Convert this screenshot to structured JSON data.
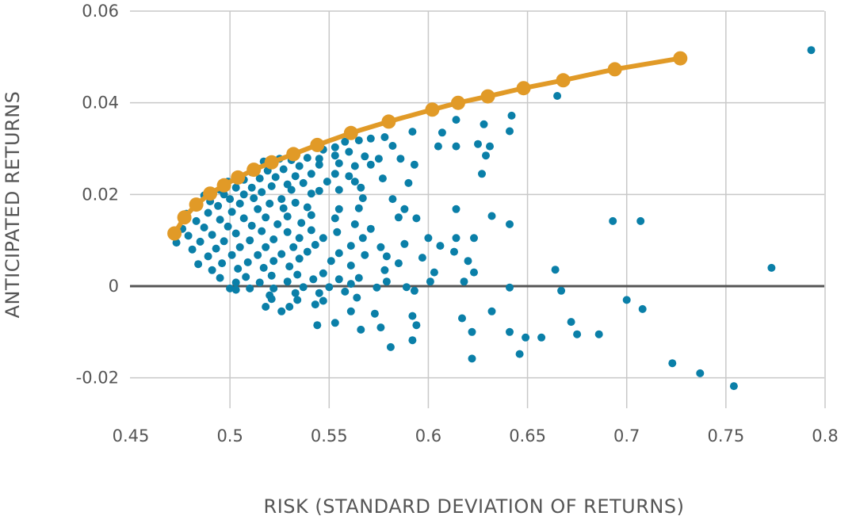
{
  "chart_data": {
    "type": "scatter",
    "title": "",
    "xlabel": "RISK (STANDARD DEVIATION OF RETURNS)",
    "ylabel": "ANTICIPATED RETURNS",
    "xlim": [
      0.45,
      0.8
    ],
    "ylim": [
      -0.026,
      0.06
    ],
    "x_ticks": [
      0.45,
      0.5,
      0.55,
      0.6,
      0.65,
      0.7,
      0.75,
      0.8
    ],
    "x_tick_labels": [
      "0.45",
      "0.5",
      "0.55",
      "0.6",
      "0.65",
      "0.7",
      "0.75",
      "0.8"
    ],
    "y_ticks": [
      -0.02,
      0,
      0.02,
      0.04,
      0.06
    ],
    "y_tick_labels": [
      "-0.02",
      "0",
      "0.02",
      "0.04",
      "0.06"
    ],
    "grid": true,
    "colors": {
      "portfolios": "#0a7fa8",
      "frontier": "#e19a27",
      "grid": "#c8c8c8",
      "zero_line": "#555555"
    },
    "series": [
      {
        "kind": "scatter",
        "points": [
          [
            0.793,
            0.0515
          ],
          [
            0.665,
            0.0415
          ],
          [
            0.642,
            0.0372
          ],
          [
            0.614,
            0.0363
          ],
          [
            0.628,
            0.0353
          ],
          [
            0.641,
            0.0338
          ],
          [
            0.607,
            0.0335
          ],
          [
            0.592,
            0.0337
          ],
          [
            0.578,
            0.0325
          ],
          [
            0.571,
            0.0322
          ],
          [
            0.565,
            0.0318
          ],
          [
            0.558,
            0.0315
          ],
          [
            0.553,
            0.0303
          ],
          [
            0.547,
            0.0298
          ],
          [
            0.582,
            0.0306
          ],
          [
            0.605,
            0.0305
          ],
          [
            0.614,
            0.0305
          ],
          [
            0.625,
            0.031
          ],
          [
            0.631,
            0.0305
          ],
          [
            0.629,
            0.0285
          ],
          [
            0.56,
            0.0293
          ],
          [
            0.568,
            0.0283
          ],
          [
            0.575,
            0.0278
          ],
          [
            0.586,
            0.0278
          ],
          [
            0.553,
            0.0285
          ],
          [
            0.545,
            0.0278
          ],
          [
            0.539,
            0.028
          ],
          [
            0.531,
            0.0275
          ],
          [
            0.525,
            0.0278
          ],
          [
            0.517,
            0.0272
          ],
          [
            0.555,
            0.0268
          ],
          [
            0.563,
            0.0262
          ],
          [
            0.571,
            0.0265
          ],
          [
            0.593,
            0.0265
          ],
          [
            0.545,
            0.0265
          ],
          [
            0.535,
            0.0262
          ],
          [
            0.527,
            0.0255
          ],
          [
            0.519,
            0.0252
          ],
          [
            0.511,
            0.0248
          ],
          [
            0.627,
            0.0245
          ],
          [
            0.553,
            0.0245
          ],
          [
            0.56,
            0.024
          ],
          [
            0.577,
            0.0235
          ],
          [
            0.59,
            0.0225
          ],
          [
            0.541,
            0.0245
          ],
          [
            0.533,
            0.024
          ],
          [
            0.523,
            0.0238
          ],
          [
            0.515,
            0.0235
          ],
          [
            0.507,
            0.0232
          ],
          [
            0.499,
            0.0228
          ],
          [
            0.563,
            0.0228
          ],
          [
            0.549,
            0.0228
          ],
          [
            0.537,
            0.0225
          ],
          [
            0.529,
            0.0222
          ],
          [
            0.521,
            0.0218
          ],
          [
            0.511,
            0.0215
          ],
          [
            0.503,
            0.0215
          ],
          [
            0.495,
            0.021
          ],
          [
            0.566,
            0.0215
          ],
          [
            0.555,
            0.021
          ],
          [
            0.545,
            0.0208
          ],
          [
            0.531,
            0.021
          ],
          [
            0.541,
            0.0202
          ],
          [
            0.516,
            0.0205
          ],
          [
            0.507,
            0.02
          ],
          [
            0.497,
            0.02
          ],
          [
            0.487,
            0.0198
          ],
          [
            0.567,
            0.0192
          ],
          [
            0.582,
            0.019
          ],
          [
            0.526,
            0.019
          ],
          [
            0.512,
            0.0192
          ],
          [
            0.5,
            0.019
          ],
          [
            0.49,
            0.0185
          ],
          [
            0.533,
            0.0182
          ],
          [
            0.52,
            0.018
          ],
          [
            0.505,
            0.018
          ],
          [
            0.494,
            0.0175
          ],
          [
            0.482,
            0.0175
          ],
          [
            0.614,
            0.0168
          ],
          [
            0.565,
            0.017
          ],
          [
            0.555,
            0.0168
          ],
          [
            0.588,
            0.0168
          ],
          [
            0.539,
            0.0172
          ],
          [
            0.527,
            0.017
          ],
          [
            0.514,
            0.0168
          ],
          [
            0.501,
            0.0162
          ],
          [
            0.489,
            0.016
          ],
          [
            0.478,
            0.0158
          ],
          [
            0.632,
            0.0153
          ],
          [
            0.594,
            0.0148
          ],
          [
            0.585,
            0.015
          ],
          [
            0.553,
            0.0148
          ],
          [
            0.541,
            0.0155
          ],
          [
            0.529,
            0.0152
          ],
          [
            0.518,
            0.015
          ],
          [
            0.507,
            0.0148
          ],
          [
            0.495,
            0.0145
          ],
          [
            0.483,
            0.0142
          ],
          [
            0.693,
            0.0142
          ],
          [
            0.707,
            0.0142
          ],
          [
            0.641,
            0.0135
          ],
          [
            0.563,
            0.0135
          ],
          [
            0.536,
            0.0138
          ],
          [
            0.524,
            0.0135
          ],
          [
            0.511,
            0.0132
          ],
          [
            0.499,
            0.013
          ],
          [
            0.487,
            0.0128
          ],
          [
            0.476,
            0.0125
          ],
          [
            0.571,
            0.0125
          ],
          [
            0.541,
            0.0122
          ],
          [
            0.554,
            0.0118
          ],
          [
            0.529,
            0.0118
          ],
          [
            0.516,
            0.012
          ],
          [
            0.503,
            0.0115
          ],
          [
            0.491,
            0.0112
          ],
          [
            0.479,
            0.011
          ],
          [
            0.6,
            0.0105
          ],
          [
            0.614,
            0.0105
          ],
          [
            0.623,
            0.0105
          ],
          [
            0.567,
            0.0105
          ],
          [
            0.547,
            0.0105
          ],
          [
            0.535,
            0.0105
          ],
          [
            0.522,
            0.0102
          ],
          [
            0.51,
            0.01
          ],
          [
            0.497,
            0.0098
          ],
          [
            0.485,
            0.0097
          ],
          [
            0.473,
            0.0095
          ],
          [
            0.588,
            0.0092
          ],
          [
            0.606,
            0.0088
          ],
          [
            0.576,
            0.0085
          ],
          [
            0.561,
            0.0088
          ],
          [
            0.543,
            0.009
          ],
          [
            0.532,
            0.0085
          ],
          [
            0.518,
            0.0085
          ],
          [
            0.505,
            0.0085
          ],
          [
            0.493,
            0.0082
          ],
          [
            0.481,
            0.008
          ],
          [
            0.613,
            0.0075
          ],
          [
            0.568,
            0.0068
          ],
          [
            0.579,
            0.0065
          ],
          [
            0.555,
            0.0072
          ],
          [
            0.539,
            0.0075
          ],
          [
            0.526,
            0.007
          ],
          [
            0.514,
            0.0068
          ],
          [
            0.501,
            0.0068
          ],
          [
            0.489,
            0.0065
          ],
          [
            0.597,
            0.0062
          ],
          [
            0.62,
            0.0055
          ],
          [
            0.585,
            0.005
          ],
          [
            0.551,
            0.0055
          ],
          [
            0.535,
            0.006
          ],
          [
            0.522,
            0.0055
          ],
          [
            0.509,
            0.0052
          ],
          [
            0.496,
            0.005
          ],
          [
            0.484,
            0.0048
          ],
          [
            0.561,
            0.0045
          ],
          [
            0.53,
            0.0043
          ],
          [
            0.517,
            0.004
          ],
          [
            0.504,
            0.0038
          ],
          [
            0.491,
            0.0035
          ],
          [
            0.578,
            0.0035
          ],
          [
            0.603,
            0.003
          ],
          [
            0.623,
            0.003
          ],
          [
            0.664,
            0.0036
          ],
          [
            0.773,
            0.004
          ],
          [
            0.547,
            0.0028
          ],
          [
            0.534,
            0.0025
          ],
          [
            0.521,
            0.0023
          ],
          [
            0.508,
            0.002
          ],
          [
            0.495,
            0.0018
          ],
          [
            0.565,
            0.0018
          ],
          [
            0.542,
            0.0015
          ],
          [
            0.555,
            0.0015
          ],
          [
            0.579,
            0.001
          ],
          [
            0.601,
            0.001
          ],
          [
            0.618,
            0.001
          ],
          [
            0.529,
            0.001
          ],
          [
            0.515,
            0.0008
          ],
          [
            0.503,
            0.0008
          ],
          [
            0.561,
            0.0005
          ],
          [
            0.55,
            -0.0002
          ],
          [
            0.537,
            -0.0002
          ],
          [
            0.522,
            -0.0005
          ],
          [
            0.51,
            -0.0005
          ],
          [
            0.5,
            -0.0005
          ],
          [
            0.589,
            -0.0002
          ],
          [
            0.574,
            -0.0003
          ],
          [
            0.641,
            -0.0003
          ],
          [
            0.503,
            -0.0008
          ],
          [
            0.558,
            -0.0012
          ],
          [
            0.545,
            -0.0015
          ],
          [
            0.533,
            -0.0015
          ],
          [
            0.52,
            -0.002
          ],
          [
            0.667,
            -0.001
          ],
          [
            0.593,
            -0.001
          ],
          [
            0.564,
            -0.0025
          ],
          [
            0.547,
            -0.0032
          ],
          [
            0.534,
            -0.003
          ],
          [
            0.521,
            -0.0028
          ],
          [
            0.7,
            -0.003
          ],
          [
            0.543,
            -0.004
          ],
          [
            0.53,
            -0.0045
          ],
          [
            0.518,
            -0.0045
          ],
          [
            0.632,
            -0.0055
          ],
          [
            0.561,
            -0.0055
          ],
          [
            0.526,
            -0.0055
          ],
          [
            0.708,
            -0.005
          ],
          [
            0.592,
            -0.0065
          ],
          [
            0.573,
            -0.006
          ],
          [
            0.544,
            -0.0085
          ],
          [
            0.553,
            -0.008
          ],
          [
            0.566,
            -0.0095
          ],
          [
            0.576,
            -0.009
          ],
          [
            0.617,
            -0.007
          ],
          [
            0.594,
            -0.0085
          ],
          [
            0.672,
            -0.0078
          ],
          [
            0.622,
            -0.01
          ],
          [
            0.641,
            -0.01
          ],
          [
            0.675,
            -0.0105
          ],
          [
            0.686,
            -0.0105
          ],
          [
            0.649,
            -0.0112
          ],
          [
            0.657,
            -0.0112
          ],
          [
            0.592,
            -0.0118
          ],
          [
            0.581,
            -0.0133
          ],
          [
            0.646,
            -0.0148
          ],
          [
            0.622,
            -0.0158
          ],
          [
            0.723,
            -0.0168
          ],
          [
            0.737,
            -0.019
          ],
          [
            0.754,
            -0.0218
          ]
        ]
      },
      {
        "kind": "line-markers",
        "points": [
          [
            0.472,
            0.0115
          ],
          [
            0.477,
            0.015
          ],
          [
            0.483,
            0.0178
          ],
          [
            0.49,
            0.0202
          ],
          [
            0.497,
            0.022
          ],
          [
            0.504,
            0.0237
          ],
          [
            0.512,
            0.0254
          ],
          [
            0.521,
            0.027
          ],
          [
            0.532,
            0.0288
          ],
          [
            0.544,
            0.0308
          ],
          [
            0.561,
            0.0334
          ],
          [
            0.58,
            0.0359
          ],
          [
            0.602,
            0.0385
          ],
          [
            0.615,
            0.04
          ],
          [
            0.63,
            0.0414
          ],
          [
            0.648,
            0.0432
          ],
          [
            0.668,
            0.0449
          ],
          [
            0.694,
            0.0473
          ],
          [
            0.727,
            0.0497
          ]
        ]
      }
    ]
  }
}
